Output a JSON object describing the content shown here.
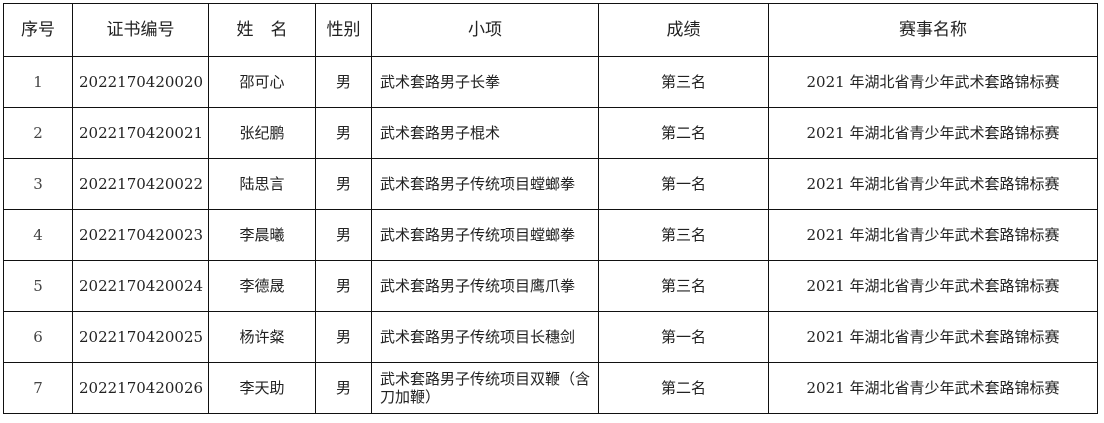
{
  "headers": [
    "序号",
    "证书编号",
    "姓　名",
    "性别",
    "小项",
    "成绩",
    "赛事名称"
  ],
  "rows": [
    [
      "1",
      "2022170420020",
      "邵可心",
      "男",
      "武术套路男子长拳",
      "第三名",
      "2021 年湖北省青少年武术套路锦标赛"
    ],
    [
      "2",
      "2022170420021",
      "张纪鹏",
      "男",
      "武术套路男子棍术",
      "第二名",
      "2021 年湖北省青少年武术套路锦标赛"
    ],
    [
      "3",
      "2022170420022",
      "陆思言",
      "男",
      "武术套路男子传统项目螳螂拳",
      "第一名",
      "2021 年湖北省青少年武术套路锦标赛"
    ],
    [
      "4",
      "2022170420023",
      "李晨曦",
      "男",
      "武术套路男子传统项目螳螂拳",
      "第三名",
      "2021 年湖北省青少年武术套路锦标赛"
    ],
    [
      "5",
      "2022170420024",
      "李德晟",
      "男",
      "武术套路男子传统项目鹰爪拳",
      "第三名",
      "2021 年湖北省青少年武术套路锦标赛"
    ],
    [
      "6",
      "2022170420025",
      "杨许粲",
      "男",
      "武术套路男子传统项目长穗剑",
      "第一名",
      "2021 年湖北省青少年武术套路锦标赛"
    ],
    [
      "7",
      "2022170420026",
      "李天助",
      "男",
      "武术套路男子传统项目双鞭（含刀加鞭）",
      "第二名",
      "2021 年湖北省青少年武术套路锦标赛"
    ]
  ]
}
